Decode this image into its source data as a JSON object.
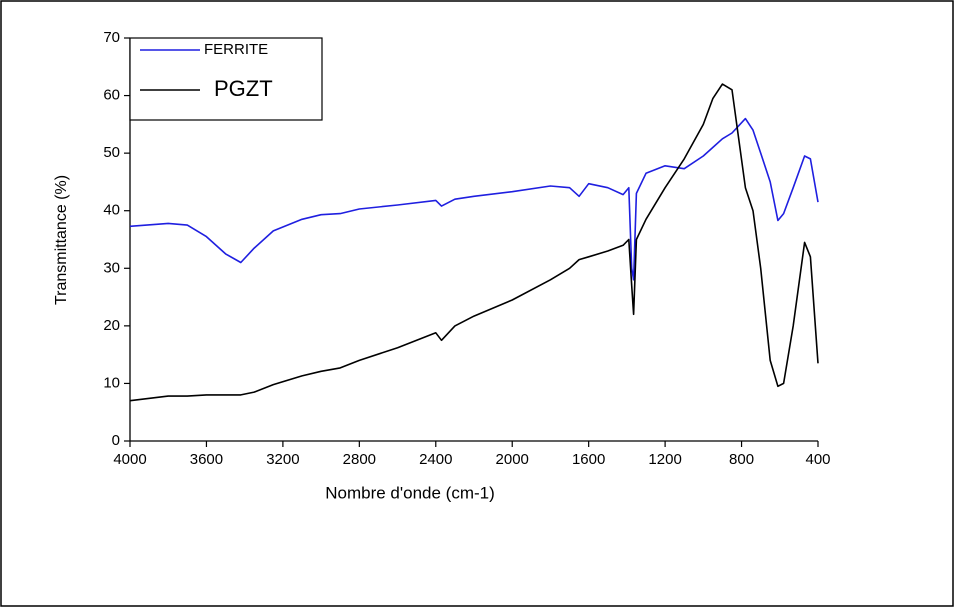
{
  "chart_data": {
    "type": "line",
    "x_label": "Nombre d'onde (cm-1)",
    "y_label": "Transmittance (%)",
    "x": [
      4000,
      3800,
      3700,
      3600,
      3500,
      3420,
      3350,
      3250,
      3100,
      3000,
      2900,
      2800,
      2600,
      2400,
      2370,
      2300,
      2200,
      2000,
      1800,
      1700,
      1650,
      1600,
      1500,
      1420,
      1390,
      1375,
      1365,
      1350,
      1300,
      1200,
      1100,
      1000,
      950,
      900,
      850,
      780,
      740,
      700,
      650,
      610,
      580,
      530,
      470,
      440,
      400
    ],
    "series": [
      {
        "name": "FERRITE",
        "color": "#1f1fe0",
        "values": [
          37.3,
          37.8,
          37.5,
          35.5,
          32.5,
          31,
          33.5,
          36.5,
          38.5,
          39.3,
          39.5,
          40.3,
          41,
          41.8,
          40.8,
          42,
          42.5,
          43.3,
          44.3,
          44,
          42.5,
          44.7,
          44,
          42.8,
          44,
          30,
          28,
          43,
          46.5,
          47.8,
          47.3,
          49.5,
          51,
          52.5,
          53.5,
          56,
          54,
          50,
          45,
          38.3,
          39.5,
          44,
          49.5,
          49,
          41.5
        ]
      },
      {
        "name": "PGZT",
        "color": "#000000",
        "values": [
          7,
          7.8,
          7.8,
          8,
          8,
          8,
          8.5,
          9.8,
          11.3,
          12.1,
          12.7,
          14,
          16.2,
          18.8,
          17.5,
          20,
          21.7,
          24.5,
          28,
          30,
          31.5,
          32,
          33,
          34,
          35,
          27,
          22,
          35,
          38.5,
          44,
          49,
          55,
          59.5,
          62,
          61,
          44,
          40,
          30,
          14,
          9.5,
          10,
          20,
          34.5,
          32,
          13.5
        ]
      }
    ],
    "xlim": [
      4000,
      400
    ],
    "xticks": [
      4000,
      3600,
      3200,
      2800,
      2400,
      2000,
      1600,
      1200,
      800,
      400
    ],
    "ylim": [
      0,
      70
    ],
    "yticks": [
      0,
      10,
      20,
      30,
      40,
      50,
      60,
      70
    ],
    "grid": false,
    "legend_position": "upper left"
  }
}
